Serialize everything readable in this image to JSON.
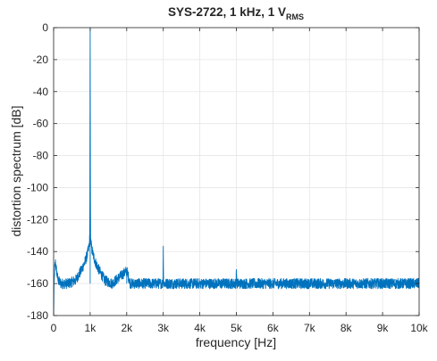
{
  "chart_data": {
    "type": "line",
    "title": "SYS-2722, 1 kHz, 1 V",
    "title_subscript": "RMS",
    "xlabel": "frequency [Hz]",
    "ylabel": "distortion spectrum [dB]",
    "xlim": [
      0,
      10000
    ],
    "ylim": [
      -180,
      0
    ],
    "xticks": [
      0,
      1000,
      2000,
      3000,
      4000,
      5000,
      6000,
      7000,
      8000,
      9000,
      10000
    ],
    "xtick_labels": [
      "0",
      "1k",
      "2k",
      "3k",
      "4k",
      "5k",
      "6k",
      "7k",
      "8k",
      "9k",
      "10k"
    ],
    "yticks": [
      0,
      -20,
      -40,
      -60,
      -80,
      -100,
      -120,
      -140,
      -160,
      -180
    ],
    "ytick_labels": [
      "0",
      "-20",
      "-40",
      "-60",
      "-80",
      "-100",
      "-120",
      "-140",
      "-160",
      "-180"
    ],
    "grid": true,
    "line_color": "#0072BD",
    "series": [
      {
        "noise_floor": -160,
        "points": [
          [
            0,
            -180
          ],
          [
            10,
            -163
          ],
          [
            30,
            -150
          ],
          [
            50,
            -147
          ],
          [
            80,
            -152
          ],
          [
            120,
            -158
          ],
          [
            200,
            -160
          ],
          [
            400,
            -160
          ],
          [
            600,
            -158
          ],
          [
            750,
            -152
          ],
          [
            850,
            -147
          ],
          [
            920,
            -142
          ],
          [
            960,
            -138
          ],
          [
            980,
            -134
          ],
          [
            990,
            -130
          ],
          [
            1000,
            0
          ],
          [
            1010,
            -130
          ],
          [
            1020,
            -134
          ],
          [
            1040,
            -138
          ],
          [
            1080,
            -142
          ],
          [
            1150,
            -147
          ],
          [
            1250,
            -152
          ],
          [
            1400,
            -158
          ],
          [
            1600,
            -160
          ],
          [
            2000,
            -152
          ],
          [
            2100,
            -160
          ],
          [
            2990,
            -160
          ],
          [
            3000,
            -138
          ],
          [
            3010,
            -160
          ],
          [
            4990,
            -160
          ],
          [
            5000,
            -151
          ],
          [
            5010,
            -160
          ],
          [
            10000,
            -160
          ]
        ]
      }
    ]
  }
}
